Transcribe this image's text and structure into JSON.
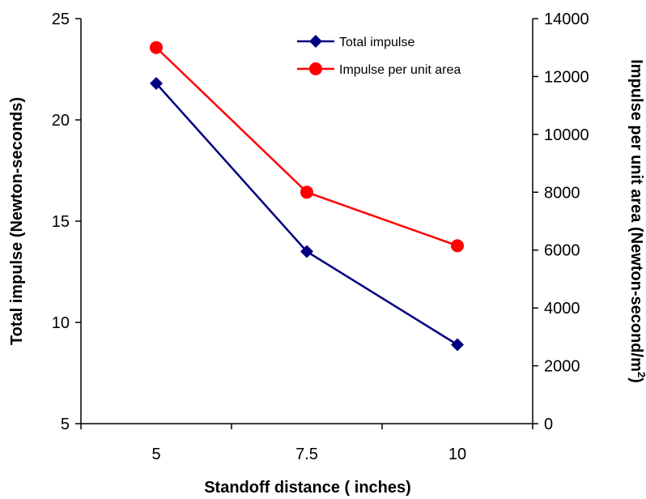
{
  "chart_data": {
    "type": "line",
    "x": [
      5,
      7.5,
      10
    ],
    "x_tick_labels": [
      "5",
      "7.5",
      "10"
    ],
    "xlabel": "Standoff distance ( inches)",
    "ylabel_left": "Total impulse (Newton-seconds)",
    "ylabel_right_prefix": "Impulse per unit area (Newton-second/m",
    "ylabel_right_sup": "2",
    "ylabel_right_suffix": ")",
    "ylim_left": [
      5,
      25
    ],
    "yticks_left": [
      "5",
      "10",
      "15",
      "20",
      "25"
    ],
    "ylim_right": [
      0,
      14000
    ],
    "yticks_right": [
      "0",
      "2000",
      "4000",
      "6000",
      "8000",
      "10000",
      "12000",
      "14000"
    ],
    "grid": false,
    "legend_position": "top-right",
    "series": [
      {
        "name": "Total impulse",
        "axis": "left",
        "color": "#000080",
        "marker": "diamond",
        "values": [
          21.8,
          13.5,
          8.9
        ]
      },
      {
        "name": "Impulse per unit area",
        "axis": "right",
        "color": "#ff0000",
        "marker": "circle",
        "values": [
          13000,
          8000,
          6150
        ]
      }
    ]
  }
}
